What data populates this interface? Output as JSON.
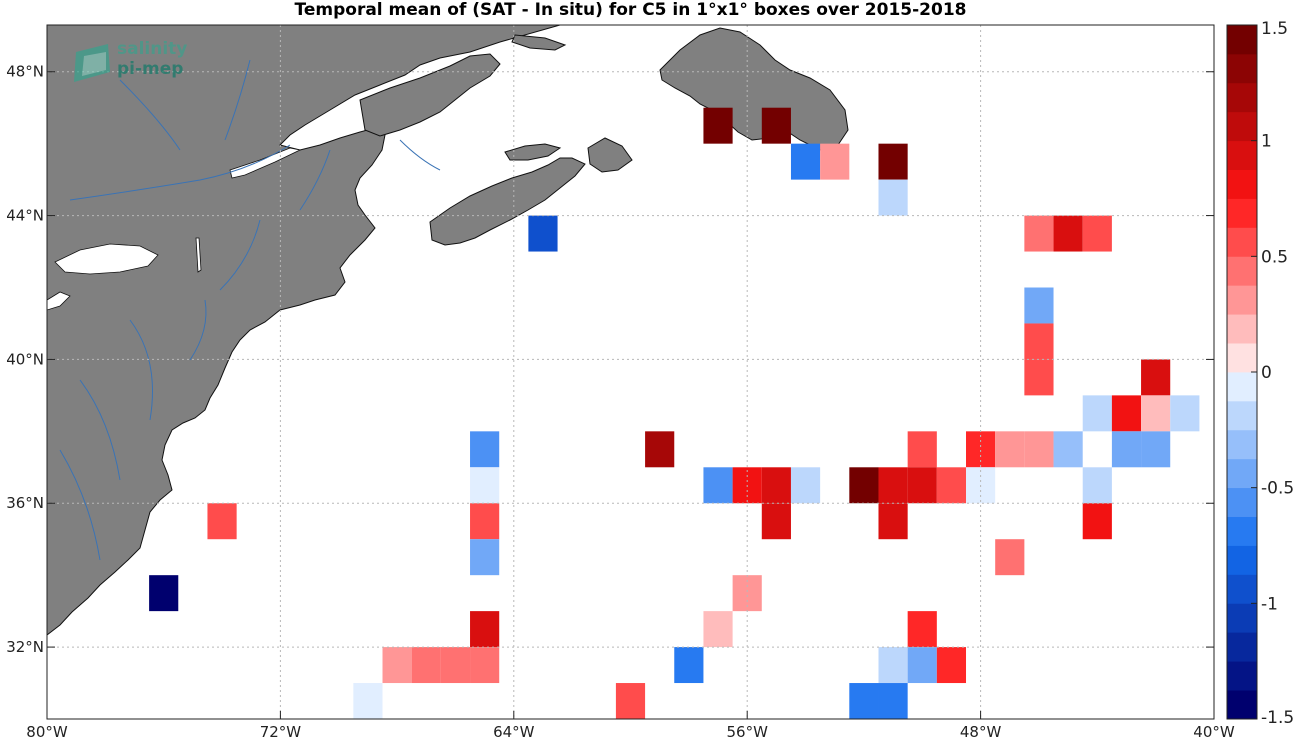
{
  "title": "Temporal mean of (SAT - In situ) for C5 in 1°x1° boxes over 2015-2018",
  "logo": {
    "line1": "salinity",
    "line2": "pi-mep"
  },
  "axes": {
    "lon_range": [
      -80,
      -40
    ],
    "lat_range": [
      30,
      49.3
    ],
    "x_ticks": [
      {
        "value": -80,
        "label": "80°W"
      },
      {
        "value": -72,
        "label": "72°W"
      },
      {
        "value": -64,
        "label": "64°W"
      },
      {
        "value": -56,
        "label": "56°W"
      },
      {
        "value": -48,
        "label": "48°W"
      },
      {
        "value": -40,
        "label": "40°W"
      }
    ],
    "y_ticks": [
      {
        "value": 48,
        "label": "48°N"
      },
      {
        "value": 44,
        "label": "44°N"
      },
      {
        "value": 40,
        "label": "40°N"
      },
      {
        "value": 36,
        "label": "36°N"
      },
      {
        "value": 32,
        "label": "32°N"
      }
    ],
    "grid": true
  },
  "colorbar": {
    "range": [
      -1.5,
      1.5
    ],
    "levels": 24,
    "ticks": [
      {
        "value": 1.5,
        "label": "1.5"
      },
      {
        "value": 1,
        "label": "1"
      },
      {
        "value": 0.5,
        "label": "0.5"
      },
      {
        "value": 0,
        "label": "0"
      },
      {
        "value": -0.5,
        "label": "-0.5"
      },
      {
        "value": -1,
        "label": "-1"
      },
      {
        "value": -1.5,
        "label": "-1.5"
      }
    ]
  },
  "colors": {
    "land": "#808080",
    "rivers": "#3a73b5",
    "coast": "#000000"
  },
  "chart_data": {
    "type": "heatmap",
    "xlabel": "",
    "ylabel": "",
    "cell_size_deg": 1,
    "cells": [
      {
        "lon": -57,
        "lat": 46.5,
        "value": 1.5
      },
      {
        "lon": -55,
        "lat": 46.5,
        "value": 1.4
      },
      {
        "lon": -54,
        "lat": 45.5,
        "value": -0.7
      },
      {
        "lon": -53,
        "lat": 45.5,
        "value": 0.35
      },
      {
        "lon": -51,
        "lat": 45.5,
        "value": 1.5
      },
      {
        "lon": -51,
        "lat": 44.5,
        "value": -0.15
      },
      {
        "lon": -63,
        "lat": 43.5,
        "value": -1.0
      },
      {
        "lon": -46,
        "lat": 43.5,
        "value": 0.45
      },
      {
        "lon": -45,
        "lat": 43.5,
        "value": 0.9
      },
      {
        "lon": -44,
        "lat": 43.5,
        "value": 0.55
      },
      {
        "lon": -46,
        "lat": 41.5,
        "value": -0.4
      },
      {
        "lon": -46,
        "lat": 40.5,
        "value": 0.5
      },
      {
        "lon": -46,
        "lat": 39.5,
        "value": 0.55
      },
      {
        "lon": -42,
        "lat": 39.5,
        "value": 0.9
      },
      {
        "lon": -44,
        "lat": 38.5,
        "value": -0.15
      },
      {
        "lon": -43,
        "lat": 38.5,
        "value": 0.85
      },
      {
        "lon": -42,
        "lat": 38.5,
        "value": 0.2
      },
      {
        "lon": -41,
        "lat": 38.5,
        "value": -0.25
      },
      {
        "lon": -65,
        "lat": 37.5,
        "value": -0.6
      },
      {
        "lon": -59,
        "lat": 37.5,
        "value": 1.2
      },
      {
        "lon": -50,
        "lat": 37.5,
        "value": 0.5
      },
      {
        "lon": -48,
        "lat": 37.5,
        "value": 0.7
      },
      {
        "lon": -47,
        "lat": 37.5,
        "value": 0.3
      },
      {
        "lon": -46,
        "lat": 37.5,
        "value": 0.3
      },
      {
        "lon": -45,
        "lat": 37.5,
        "value": -0.35
      },
      {
        "lon": -43,
        "lat": 37.5,
        "value": -0.45
      },
      {
        "lon": -42,
        "lat": 37.5,
        "value": -0.45
      },
      {
        "lon": -65,
        "lat": 36.5,
        "value": -0.1
      },
      {
        "lon": -57,
        "lat": 36.5,
        "value": -0.55
      },
      {
        "lon": -56,
        "lat": 36.5,
        "value": 0.8
      },
      {
        "lon": -55,
        "lat": 36.5,
        "value": 0.9
      },
      {
        "lon": -54,
        "lat": 36.5,
        "value": -0.2
      },
      {
        "lon": -52,
        "lat": 36.5,
        "value": 1.5
      },
      {
        "lon": -51,
        "lat": 36.5,
        "value": 0.9
      },
      {
        "lon": -50,
        "lat": 36.5,
        "value": 0.9
      },
      {
        "lon": -49,
        "lat": 36.5,
        "value": 0.5
      },
      {
        "lon": -48,
        "lat": 36.5,
        "value": -0.1
      },
      {
        "lon": -44,
        "lat": 36.5,
        "value": -0.2
      },
      {
        "lon": -74,
        "lat": 35.5,
        "value": 0.5
      },
      {
        "lon": -65,
        "lat": 35.5,
        "value": 0.5
      },
      {
        "lon": -55,
        "lat": 35.5,
        "value": 0.9
      },
      {
        "lon": -51,
        "lat": 35.5,
        "value": 0.9
      },
      {
        "lon": -44,
        "lat": 35.5,
        "value": 0.85
      },
      {
        "lon": -65,
        "lat": 34.5,
        "value": -0.45
      },
      {
        "lon": -47,
        "lat": 34.5,
        "value": 0.45
      },
      {
        "lon": -76,
        "lat": 33.5,
        "value": -1.5
      },
      {
        "lon": -56,
        "lat": 33.5,
        "value": 0.3
      },
      {
        "lon": -57,
        "lat": 32.5,
        "value": 0.15
      },
      {
        "lon": -65,
        "lat": 32.5,
        "value": 0.9
      },
      {
        "lon": -50,
        "lat": 32.5,
        "value": 0.65
      },
      {
        "lon": -68,
        "lat": 31.5,
        "value": 0.25
      },
      {
        "lon": -67,
        "lat": 31.5,
        "value": 0.4
      },
      {
        "lon": -66,
        "lat": 31.5,
        "value": 0.4
      },
      {
        "lon": -65,
        "lat": 31.5,
        "value": 0.4
      },
      {
        "lon": -58,
        "lat": 31.5,
        "value": -0.7
      },
      {
        "lon": -51,
        "lat": 31.5,
        "value": -0.2
      },
      {
        "lon": -50,
        "lat": 31.5,
        "value": -0.45
      },
      {
        "lon": -49,
        "lat": 31.5,
        "value": 0.65
      },
      {
        "lon": -69,
        "lat": 30.5,
        "value": -0.1
      },
      {
        "lon": -60,
        "lat": 30.5,
        "value": 0.55
      },
      {
        "lon": -52,
        "lat": 30.5,
        "value": -0.7
      },
      {
        "lon": -51,
        "lat": 30.5,
        "value": -0.75
      }
    ]
  }
}
